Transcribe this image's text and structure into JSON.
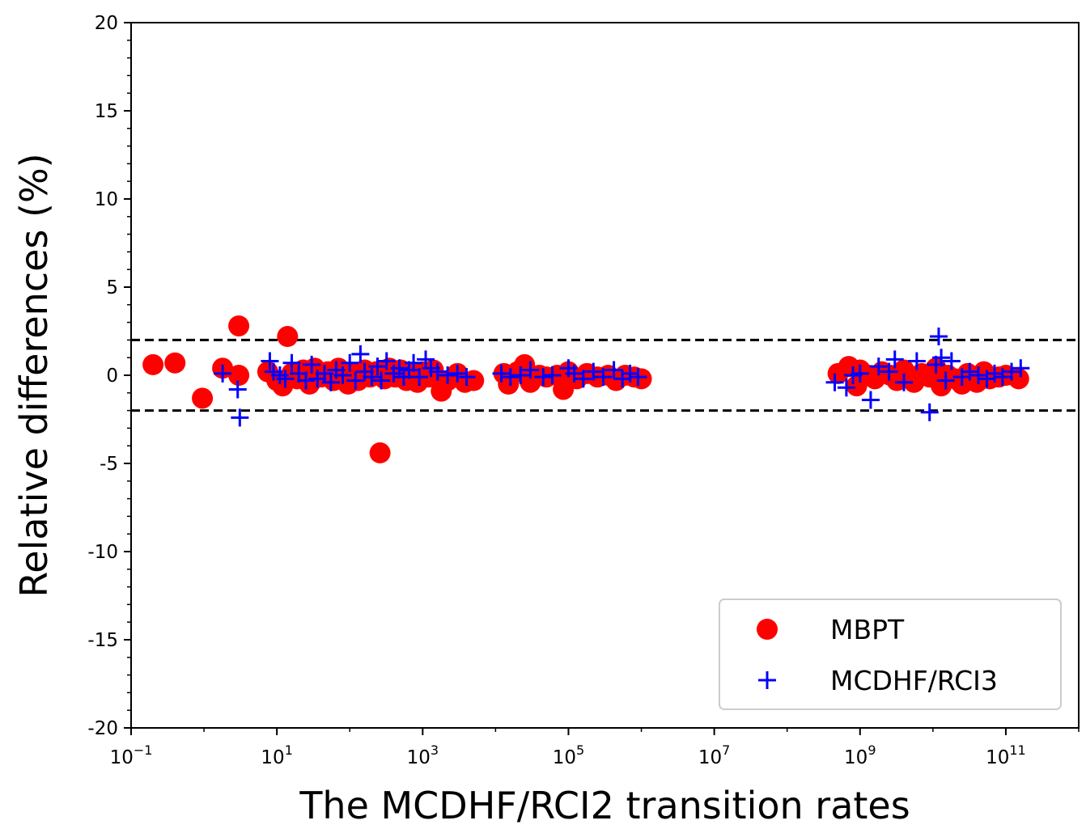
{
  "chart_data": {
    "type": "scatter",
    "title": "",
    "xlabel": "The MCDHF/RCI2 transition rates",
    "ylabel": "Relative differences (%)",
    "xscale": "log",
    "xlim": [
      0.1,
      1000000000000.0
    ],
    "ylim": [
      -20,
      20
    ],
    "x_ticks": [
      {
        "base": "10",
        "exp": "−1",
        "value": 0.1
      },
      {
        "base": "10",
        "exp": "1",
        "value": 10
      },
      {
        "base": "10",
        "exp": "3",
        "value": 1000
      },
      {
        "base": "10",
        "exp": "5",
        "value": 100000
      },
      {
        "base": "10",
        "exp": "7",
        "value": 10000000
      },
      {
        "base": "10",
        "exp": "9",
        "value": 1000000000
      },
      {
        "base": "10",
        "exp": "11",
        "value": 100000000000
      }
    ],
    "y_ticks": [
      {
        "label": "20",
        "value": 20
      },
      {
        "label": "15",
        "value": 15
      },
      {
        "label": "10",
        "value": 10
      },
      {
        "label": "5",
        "value": 5
      },
      {
        "label": "0",
        "value": 0
      },
      {
        "label": "-5",
        "value": -5
      },
      {
        "label": "-10",
        "value": -10
      },
      {
        "label": "-15",
        "value": -15
      },
      {
        "label": "-20",
        "value": -20
      }
    ],
    "reference_lines": [
      2,
      -2
    ],
    "grid": false,
    "legend_position": "bottom-right",
    "series": [
      {
        "name": "MBPT",
        "marker": "circle",
        "color": "#ff0000",
        "points": [
          [
            0.2,
            0.6
          ],
          [
            0.4,
            0.7
          ],
          [
            0.95,
            -1.3
          ],
          [
            1.8,
            0.4
          ],
          [
            3.0,
            2.8
          ],
          [
            3.0,
            0.0
          ],
          [
            7.5,
            0.2
          ],
          [
            10,
            -0.3
          ],
          [
            12,
            -0.6
          ],
          [
            14,
            2.2
          ],
          [
            16,
            0.1
          ],
          [
            19,
            -0.2
          ],
          [
            23,
            0.3
          ],
          [
            28,
            -0.5
          ],
          [
            33,
            0.4
          ],
          [
            40,
            -0.1
          ],
          [
            50,
            0.2
          ],
          [
            60,
            -0.3
          ],
          [
            70,
            0.4
          ],
          [
            80,
            -0.2
          ],
          [
            95,
            -0.5
          ],
          [
            110,
            0.1
          ],
          [
            130,
            -0.3
          ],
          [
            160,
            0.3
          ],
          [
            190,
            -0.1
          ],
          [
            230,
            0.2
          ],
          [
            260,
            -4.4
          ],
          [
            300,
            -0.2
          ],
          [
            350,
            0.4
          ],
          [
            420,
            -0.1
          ],
          [
            500,
            0.3
          ],
          [
            600,
            -0.3
          ],
          [
            700,
            0.1
          ],
          [
            850,
            -0.4
          ],
          [
            1000,
            0.2
          ],
          [
            1200,
            -0.1
          ],
          [
            1400,
            0.3
          ],
          [
            1800,
            -0.9
          ],
          [
            2200,
            -0.3
          ],
          [
            3000,
            0.1
          ],
          [
            3800,
            -0.4
          ],
          [
            5000,
            -0.3
          ],
          [
            13000,
            0.1
          ],
          [
            15000,
            -0.5
          ],
          [
            20000,
            0.2
          ],
          [
            25000,
            0.6
          ],
          [
            30000,
            -0.4
          ],
          [
            40000,
            0.0
          ],
          [
            50000,
            -0.1
          ],
          [
            70000,
            0.0
          ],
          [
            85000,
            -0.8
          ],
          [
            100000,
            0.2
          ],
          [
            130000,
            -0.2
          ],
          [
            180000,
            0.1
          ],
          [
            250000,
            -0.1
          ],
          [
            350000,
            0.0
          ],
          [
            450000,
            -0.3
          ],
          [
            600000,
            0.0
          ],
          [
            800000,
            -0.1
          ],
          [
            1000000,
            -0.2
          ],
          [
            500000000,
            0.1
          ],
          [
            700000000,
            0.5
          ],
          [
            900000000,
            -0.6
          ],
          [
            1000000000,
            0.3
          ],
          [
            1300000000,
            0.0
          ],
          [
            1600000000,
            -0.2
          ],
          [
            2000000000,
            0.2
          ],
          [
            2600000000,
            0.0
          ],
          [
            3200000000,
            -0.3
          ],
          [
            4000000000,
            0.3
          ],
          [
            5500000000,
            -0.4
          ],
          [
            7000000000,
            0.1
          ],
          [
            9000000000,
            -0.1
          ],
          [
            11000000000,
            0.4
          ],
          [
            13000000000,
            -0.6
          ],
          [
            16000000000,
            0.0
          ],
          [
            20000000000,
            -0.2
          ],
          [
            25000000000,
            -0.5
          ],
          [
            30000000000,
            0.1
          ],
          [
            40000000000,
            -0.4
          ],
          [
            50000000000,
            0.2
          ],
          [
            60000000000,
            -0.2
          ],
          [
            80000000000,
            -0.1
          ],
          [
            100000000000,
            0.0
          ],
          [
            150000000000,
            -0.2
          ]
        ]
      },
      {
        "name": "MCDHF/RCI3",
        "marker": "plus",
        "color": "#0000ff",
        "points": [
          [
            1.8,
            0.1
          ],
          [
            2.9,
            -0.8
          ],
          [
            3.1,
            -2.4
          ],
          [
            8,
            0.8
          ],
          [
            9,
            0.2
          ],
          [
            11,
            0.0
          ],
          [
            13,
            -0.2
          ],
          [
            16,
            0.7
          ],
          [
            20,
            0.1
          ],
          [
            25,
            -0.3
          ],
          [
            30,
            0.6
          ],
          [
            36,
            -0.2
          ],
          [
            45,
            0.1
          ],
          [
            55,
            -0.4
          ],
          [
            65,
            0.3
          ],
          [
            80,
            0.0
          ],
          [
            100,
            0.7
          ],
          [
            120,
            -0.3
          ],
          [
            140,
            1.2
          ],
          [
            160,
            0.2
          ],
          [
            200,
            -0.1
          ],
          [
            240,
            0.5
          ],
          [
            270,
            -0.3
          ],
          [
            320,
            0.8
          ],
          [
            400,
            0.1
          ],
          [
            480,
            0.4
          ],
          [
            550,
            -0.1
          ],
          [
            650,
            0.3
          ],
          [
            750,
            0.7
          ],
          [
            900,
            -0.1
          ],
          [
            1100,
            0.9
          ],
          [
            1300,
            0.4
          ],
          [
            1600,
            0.2
          ],
          [
            2200,
            0.0
          ],
          [
            3000,
            0.1
          ],
          [
            4000,
            -0.1
          ],
          [
            12000,
            0.1
          ],
          [
            16000,
            -0.1
          ],
          [
            22000,
            0.0
          ],
          [
            30000,
            0.3
          ],
          [
            45000,
            -0.1
          ],
          [
            60000,
            0.0
          ],
          [
            100000,
            0.4
          ],
          [
            120000,
            0.1
          ],
          [
            160000,
            -0.2
          ],
          [
            220000,
            0.2
          ],
          [
            300000,
            -0.1
          ],
          [
            420000,
            0.3
          ],
          [
            550000,
            -0.2
          ],
          [
            700000,
            0.1
          ],
          [
            900000,
            -0.1
          ],
          [
            450000000,
            -0.4
          ],
          [
            650000000,
            -0.7
          ],
          [
            800000000,
            0.0
          ],
          [
            1000000000,
            0.1
          ],
          [
            1400000000,
            -1.4
          ],
          [
            1800000000,
            0.5
          ],
          [
            2500000000,
            0.2
          ],
          [
            3000000000,
            0.9
          ],
          [
            4000000000,
            -0.4
          ],
          [
            6000000000,
            0.8
          ],
          [
            9000000000,
            -2.1
          ],
          [
            11000000000,
            0.6
          ],
          [
            12000000000,
            2.2
          ],
          [
            13000000000,
            1.0
          ],
          [
            15000000000,
            -0.3
          ],
          [
            18000000000,
            0.8
          ],
          [
            25000000000,
            -0.1
          ],
          [
            32000000000,
            0.2
          ],
          [
            42000000000,
            0.0
          ],
          [
            55000000000,
            -0.2
          ],
          [
            70000000000,
            0.1
          ],
          [
            90000000000,
            -0.1
          ],
          [
            120000000000,
            0.2
          ],
          [
            160000000000,
            0.4
          ]
        ]
      }
    ]
  }
}
